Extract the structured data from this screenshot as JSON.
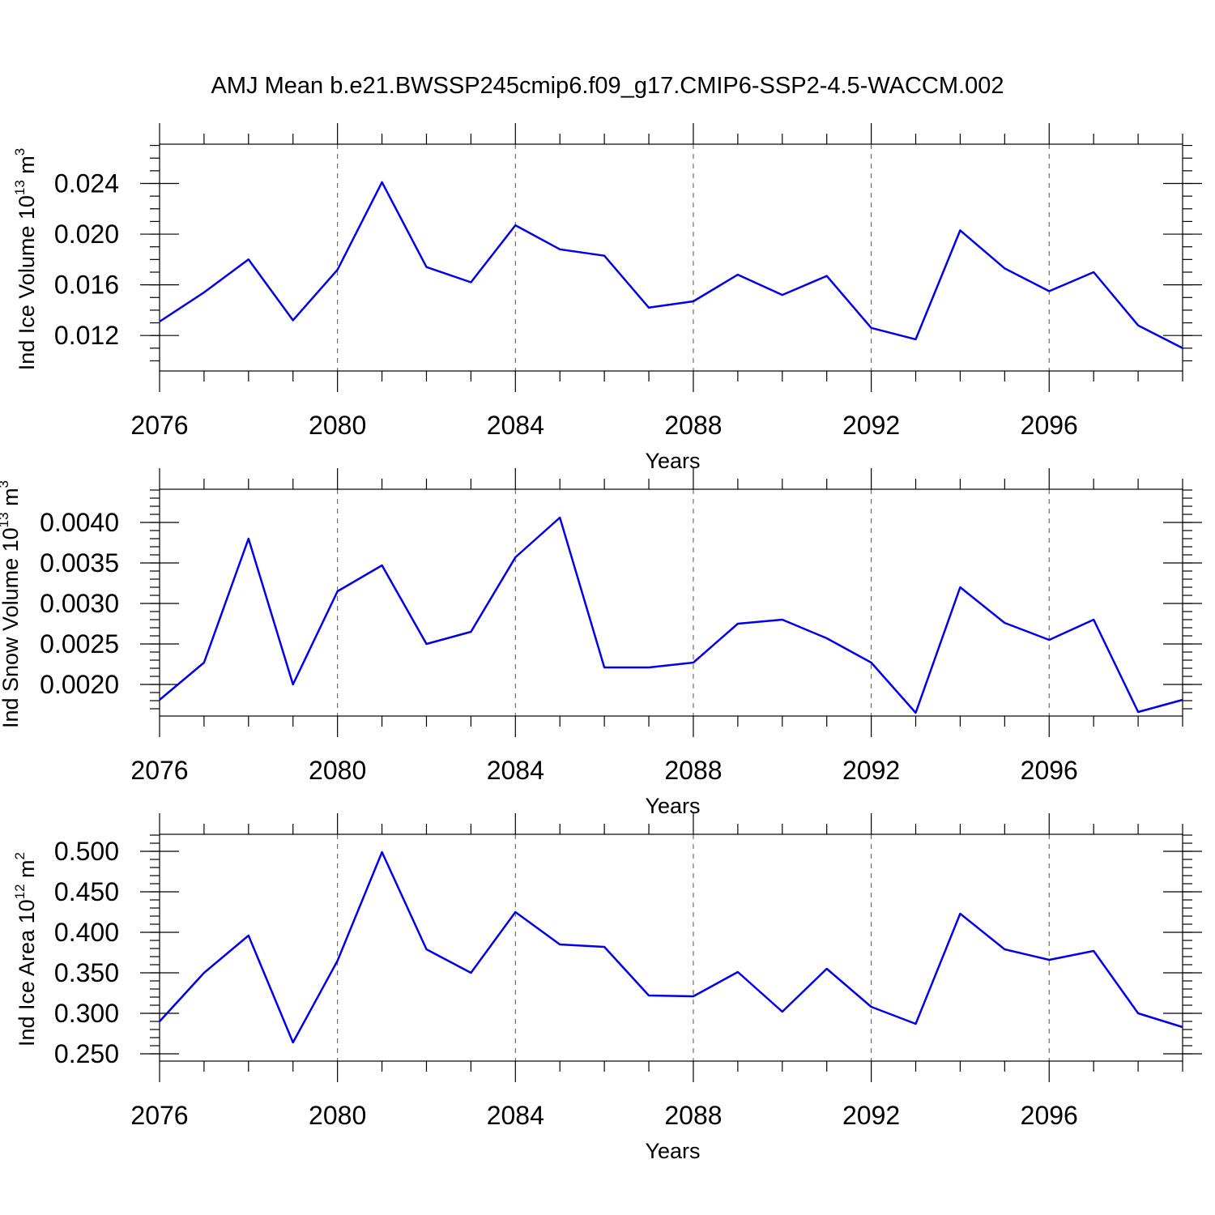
{
  "figure_title": "AMJ Mean b.e21.BWSSP245cmip6.f09_g17.CMIP6-SSP2-4.5-WACCM.002",
  "series_color": "#0000ee",
  "chart_data": [
    {
      "type": "line",
      "title": "",
      "xlabel": "Years",
      "ylabel_main": "Ind Ice Volume 10",
      "ylabel_exp": "13",
      "ylabel_unit": " m",
      "ylabel_unit_exp": "3",
      "xlim": [
        2076,
        2099
      ],
      "ylim": [
        0.0092,
        0.0271
      ],
      "xticks": [
        2076,
        2080,
        2084,
        2088,
        2092,
        2096
      ],
      "xtick_labels": [
        "2076",
        "2080",
        "2084",
        "2088",
        "2092",
        "2096"
      ],
      "yticks": [
        0.012,
        0.016,
        0.02,
        0.024
      ],
      "ytick_labels": [
        "0.012",
        "0.016",
        "0.020",
        "0.024"
      ],
      "yminor_step": 0.001,
      "grid": "x-dashed",
      "x": [
        2076,
        2077,
        2078,
        2079,
        2080,
        2081,
        2082,
        2083,
        2084,
        2085,
        2086,
        2087,
        2088,
        2089,
        2090,
        2091,
        2092,
        2093,
        2094,
        2095,
        2096,
        2097,
        2098,
        2099
      ],
      "values": [
        0.0131,
        0.0154,
        0.018,
        0.0132,
        0.0172,
        0.0241,
        0.0174,
        0.0162,
        0.0207,
        0.0188,
        0.0183,
        0.0142,
        0.0147,
        0.0168,
        0.0152,
        0.0167,
        0.0126,
        0.0117,
        0.0203,
        0.0173,
        0.0155,
        0.017,
        0.0128,
        0.011
      ]
    },
    {
      "type": "line",
      "title": "",
      "xlabel": "Years",
      "ylabel_main": "Ind Snow Volume 10",
      "ylabel_exp": "13",
      "ylabel_unit": " m",
      "ylabel_unit_exp": "3",
      "xlim": [
        2076,
        2099
      ],
      "ylim": [
        0.00161,
        0.00441
      ],
      "xticks": [
        2076,
        2080,
        2084,
        2088,
        2092,
        2096
      ],
      "xtick_labels": [
        "2076",
        "2080",
        "2084",
        "2088",
        "2092",
        "2096"
      ],
      "yticks": [
        0.002,
        0.0025,
        0.003,
        0.0035,
        0.004
      ],
      "ytick_labels": [
        "0.0020",
        "0.0025",
        "0.0030",
        "0.0035",
        "0.0040"
      ],
      "yminor_step": 0.0001,
      "grid": "x-dashed",
      "x": [
        2076,
        2077,
        2078,
        2079,
        2080,
        2081,
        2082,
        2083,
        2084,
        2085,
        2086,
        2087,
        2088,
        2089,
        2090,
        2091,
        2092,
        2093,
        2094,
        2095,
        2096,
        2097,
        2098,
        2099
      ],
      "values": [
        0.00181,
        0.00227,
        0.0038,
        0.002,
        0.00315,
        0.00347,
        0.0025,
        0.00265,
        0.00357,
        0.00406,
        0.00221,
        0.00221,
        0.00227,
        0.00275,
        0.0028,
        0.00257,
        0.00227,
        0.00165,
        0.0032,
        0.00276,
        0.00255,
        0.0028,
        0.00166,
        0.00181
      ]
    },
    {
      "type": "line",
      "title": "",
      "xlabel": "Years",
      "ylabel_main": "Ind Ice Area 10",
      "ylabel_exp": "12",
      "ylabel_unit": " m",
      "ylabel_unit_exp": "2",
      "xlim": [
        2076,
        2099
      ],
      "ylim": [
        0.241,
        0.521
      ],
      "xticks": [
        2076,
        2080,
        2084,
        2088,
        2092,
        2096
      ],
      "xtick_labels": [
        "2076",
        "2080",
        "2084",
        "2088",
        "2092",
        "2096"
      ],
      "yticks": [
        0.25,
        0.3,
        0.35,
        0.4,
        0.45,
        0.5
      ],
      "ytick_labels": [
        "0.250",
        "0.300",
        "0.350",
        "0.400",
        "0.450",
        "0.500"
      ],
      "yminor_step": 0.01,
      "grid": "x-dashed",
      "x": [
        2076,
        2077,
        2078,
        2079,
        2080,
        2081,
        2082,
        2083,
        2084,
        2085,
        2086,
        2087,
        2088,
        2089,
        2090,
        2091,
        2092,
        2093,
        2094,
        2095,
        2096,
        2097,
        2098,
        2099
      ],
      "values": [
        0.29,
        0.35,
        0.396,
        0.264,
        0.365,
        0.499,
        0.379,
        0.35,
        0.425,
        0.385,
        0.382,
        0.322,
        0.321,
        0.351,
        0.302,
        0.355,
        0.308,
        0.287,
        0.423,
        0.379,
        0.366,
        0.377,
        0.3,
        0.283
      ]
    }
  ]
}
